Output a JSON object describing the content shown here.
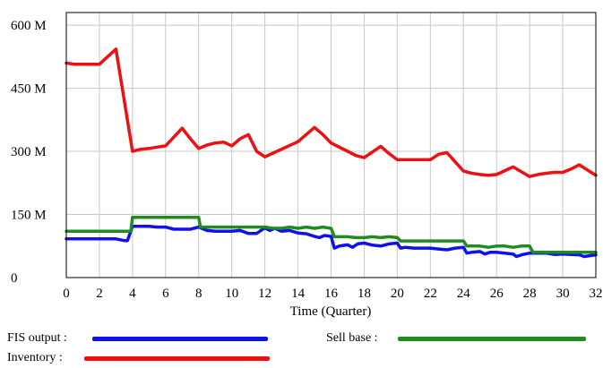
{
  "chart_data": {
    "type": "line",
    "title": "",
    "xlabel": "Time (Quarter)",
    "ylabel": "",
    "xlim": [
      0,
      32
    ],
    "ylim": [
      0,
      630
    ],
    "x_ticks": [
      0,
      2,
      4,
      6,
      8,
      10,
      12,
      14,
      16,
      18,
      20,
      22,
      24,
      26,
      28,
      30,
      32
    ],
    "y_ticks": [
      0,
      150,
      300,
      450,
      600
    ],
    "y_tick_labels": [
      "0",
      "150 M",
      "300 M",
      "450 M",
      "600 M"
    ],
    "grid": true,
    "legend_position": "bottom",
    "series": [
      {
        "name": "FIS output",
        "color": "#1010ee",
        "points": [
          [
            0,
            92
          ],
          [
            1,
            92
          ],
          [
            2,
            92
          ],
          [
            3,
            92
          ],
          [
            3.5,
            88
          ],
          [
            3.7,
            88
          ],
          [
            4,
            122
          ],
          [
            4.5,
            122
          ],
          [
            5,
            122
          ],
          [
            5.5,
            120
          ],
          [
            6,
            120
          ],
          [
            6.5,
            115
          ],
          [
            7,
            115
          ],
          [
            7.5,
            115
          ],
          [
            8,
            120
          ],
          [
            8.5,
            112
          ],
          [
            9,
            110
          ],
          [
            9.5,
            110
          ],
          [
            10,
            110
          ],
          [
            10.5,
            112
          ],
          [
            11,
            105
          ],
          [
            11.5,
            105
          ],
          [
            12,
            118
          ],
          [
            12.3,
            112
          ],
          [
            12.6,
            117
          ],
          [
            13,
            110
          ],
          [
            13.5,
            112
          ],
          [
            14,
            106
          ],
          [
            14.5,
            104
          ],
          [
            15,
            98
          ],
          [
            15.3,
            95
          ],
          [
            15.6,
            100
          ],
          [
            16,
            98
          ],
          [
            16.2,
            70
          ],
          [
            16.5,
            75
          ],
          [
            17,
            78
          ],
          [
            17.3,
            72
          ],
          [
            17.6,
            80
          ],
          [
            18,
            82
          ],
          [
            18.5,
            77
          ],
          [
            19,
            75
          ],
          [
            19.5,
            80
          ],
          [
            20,
            82
          ],
          [
            20.2,
            70
          ],
          [
            20.5,
            72
          ],
          [
            21,
            70
          ],
          [
            21.5,
            70
          ],
          [
            22,
            70
          ],
          [
            22.5,
            68
          ],
          [
            23,
            66
          ],
          [
            23.5,
            70
          ],
          [
            24,
            72
          ],
          [
            24.2,
            58
          ],
          [
            24.5,
            60
          ],
          [
            25,
            62
          ],
          [
            25.3,
            56
          ],
          [
            25.6,
            60
          ],
          [
            26,
            60
          ],
          [
            26.5,
            58
          ],
          [
            27,
            56
          ],
          [
            27.2,
            50
          ],
          [
            27.6,
            55
          ],
          [
            28,
            58
          ],
          [
            28.5,
            58
          ],
          [
            29,
            58
          ],
          [
            29.5,
            55
          ],
          [
            30,
            56
          ],
          [
            30.5,
            55
          ],
          [
            31,
            54
          ],
          [
            31.3,
            50
          ],
          [
            31.6,
            52
          ],
          [
            32,
            54
          ]
        ]
      },
      {
        "name": "Sell base",
        "color": "#1e8c1e",
        "points": [
          [
            0,
            110
          ],
          [
            3.9,
            110
          ],
          [
            4,
            143
          ],
          [
            8,
            143
          ],
          [
            8.1,
            120
          ],
          [
            12,
            120
          ],
          [
            12.5,
            117
          ],
          [
            13,
            117
          ],
          [
            13.5,
            120
          ],
          [
            14,
            117
          ],
          [
            14.5,
            120
          ],
          [
            15,
            117
          ],
          [
            15.5,
            120
          ],
          [
            16,
            117
          ],
          [
            16.2,
            97
          ],
          [
            17,
            97
          ],
          [
            17.5,
            95
          ],
          [
            18,
            95
          ],
          [
            18.5,
            97
          ],
          [
            19,
            95
          ],
          [
            19.5,
            97
          ],
          [
            20,
            95
          ],
          [
            20.2,
            87
          ],
          [
            24,
            87
          ],
          [
            24.2,
            75
          ],
          [
            25,
            75
          ],
          [
            25.5,
            72
          ],
          [
            26,
            75
          ],
          [
            26.5,
            75
          ],
          [
            27,
            72
          ],
          [
            27.5,
            75
          ],
          [
            28,
            75
          ],
          [
            28.2,
            60
          ],
          [
            32,
            60
          ]
        ]
      },
      {
        "name": "Inventory",
        "color": "#ee1010",
        "points": [
          [
            0,
            510
          ],
          [
            0.5,
            507
          ],
          [
            1,
            507
          ],
          [
            2,
            507
          ],
          [
            3,
            543
          ],
          [
            4,
            300
          ],
          [
            4.5,
            305
          ],
          [
            5,
            307
          ],
          [
            5.5,
            310
          ],
          [
            6,
            313
          ],
          [
            7,
            355
          ],
          [
            7.5,
            330
          ],
          [
            8,
            307
          ],
          [
            8.5,
            315
          ],
          [
            9,
            320
          ],
          [
            9.5,
            322
          ],
          [
            10,
            313
          ],
          [
            10.5,
            330
          ],
          [
            11,
            340
          ],
          [
            11.5,
            300
          ],
          [
            12,
            287
          ],
          [
            13,
            305
          ],
          [
            14,
            323
          ],
          [
            15,
            357
          ],
          [
            15.5,
            340
          ],
          [
            16,
            320
          ],
          [
            17,
            300
          ],
          [
            17.5,
            290
          ],
          [
            18,
            285
          ],
          [
            19,
            312
          ],
          [
            19.5,
            295
          ],
          [
            20,
            280
          ],
          [
            21,
            280
          ],
          [
            22,
            280
          ],
          [
            22.5,
            293
          ],
          [
            23,
            297
          ],
          [
            24,
            253
          ],
          [
            24.5,
            248
          ],
          [
            25,
            245
          ],
          [
            25.5,
            243
          ],
          [
            26,
            245
          ],
          [
            27,
            263
          ],
          [
            28,
            240
          ],
          [
            28.5,
            245
          ],
          [
            29,
            248
          ],
          [
            29.5,
            250
          ],
          [
            30,
            250
          ],
          [
            30.5,
            258
          ],
          [
            31,
            268
          ],
          [
            32,
            243
          ]
        ]
      }
    ]
  },
  "legend": {
    "fis_output": "FIS output :",
    "sell_base": "Sell base :",
    "inventory": "Inventory :"
  }
}
